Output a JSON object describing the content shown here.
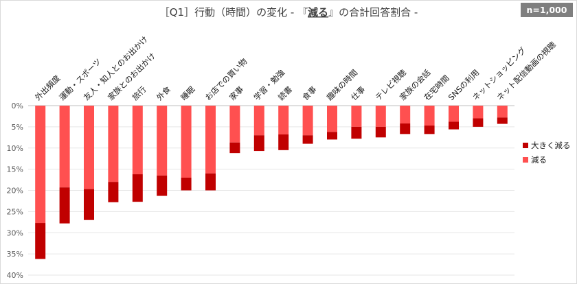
{
  "badge": "n=1,000",
  "chart_data": {
    "type": "bar",
    "stacked": true,
    "title": "［Q1］行動（時間）の変化 - 『減る』の合計回答割合 -",
    "title_underlined_part": "減る",
    "y_axis": {
      "min": 0,
      "max": 40,
      "step": 5,
      "inverted": true,
      "format": "percent"
    },
    "y_ticks": [
      "0%",
      "5%",
      "10%",
      "15%",
      "20%",
      "25%",
      "30%",
      "35%",
      "40%"
    ],
    "categories": [
      "外出頻度",
      "運動・スポーツ",
      "友人・知人とのお出かけ",
      "家族とのお出かけ",
      "旅行",
      "外食",
      "睡眠",
      "お店での買い物",
      "家事",
      "学習・勉強",
      "読書",
      "食事",
      "趣味の時間",
      "仕事",
      "テレビ視聴",
      "家族の会話",
      "在宅時間",
      "SNSの利用",
      "ネットショッピング",
      "ネット配信動画の視聴"
    ],
    "series": [
      {
        "name": "大きく減る",
        "color": "#c00000",
        "values": [
          8.5,
          8.5,
          7.3,
          4.8,
          6.5,
          4.8,
          3.0,
          4.0,
          2.5,
          3.7,
          3.7,
          2.0,
          1.8,
          2.8,
          2.5,
          2.5,
          2.0,
          1.8,
          2.0,
          1.5
        ]
      },
      {
        "name": "減る",
        "color": "#ff5050",
        "values": [
          27.7,
          19.3,
          19.7,
          18.0,
          16.2,
          16.5,
          17.0,
          16.0,
          8.7,
          7.0,
          6.8,
          7.0,
          6.2,
          5.0,
          5.0,
          4.2,
          4.7,
          3.8,
          3.0,
          2.8
        ]
      }
    ],
    "legend_position": "right",
    "grid": true
  }
}
